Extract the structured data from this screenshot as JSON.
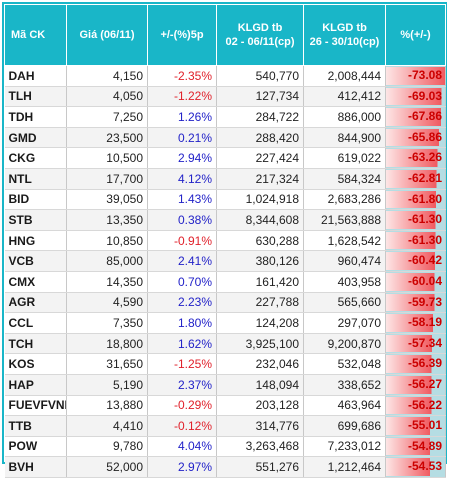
{
  "colors": {
    "header_bg": "#19b6c8",
    "neg": "#e0202a",
    "pos": "#2222c8",
    "bar_red": "#f05a60",
    "bar_fade": "#fde6e6",
    "cell_teal": "#b5dde3",
    "pct_text": "#cc0000"
  },
  "table": {
    "headers": {
      "symbol": "Mã CK",
      "price": "Giá (06/11)",
      "change": "+/-(%)5p",
      "vol_recent_line1": "KLGD tb",
      "vol_recent_line2": "02 - 06/11(cp)",
      "vol_prev_line1": "KLGD tb",
      "vol_prev_line2": "26 - 30/10(cp)",
      "pct": "%(+/-)"
    },
    "rows": [
      {
        "symbol": "DAH",
        "price": "4,150",
        "change": "-2.35%",
        "change_value": -2.35,
        "vol_recent": "540,770",
        "vol_prev": "2,008,444",
        "pct": "-73.08",
        "pct_value": -73.08
      },
      {
        "symbol": "TLH",
        "price": "4,050",
        "change": "-1.22%",
        "change_value": -1.22,
        "vol_recent": "127,734",
        "vol_prev": "412,412",
        "pct": "-69.03",
        "pct_value": -69.03
      },
      {
        "symbol": "TDH",
        "price": "7,250",
        "change": "1.26%",
        "change_value": 1.26,
        "vol_recent": "284,722",
        "vol_prev": "886,000",
        "pct": "-67.86",
        "pct_value": -67.86
      },
      {
        "symbol": "GMD",
        "price": "23,500",
        "change": "0.21%",
        "change_value": 0.21,
        "vol_recent": "288,420",
        "vol_prev": "844,900",
        "pct": "-65.86",
        "pct_value": -65.86
      },
      {
        "symbol": "CKG",
        "price": "10,500",
        "change": "2.94%",
        "change_value": 2.94,
        "vol_recent": "227,424",
        "vol_prev": "619,022",
        "pct": "-63.26",
        "pct_value": -63.26
      },
      {
        "symbol": "NTL",
        "price": "17,700",
        "change": "4.12%",
        "change_value": 4.12,
        "vol_recent": "217,324",
        "vol_prev": "584,324",
        "pct": "-62.81",
        "pct_value": -62.81
      },
      {
        "symbol": "BID",
        "price": "39,050",
        "change": "1.43%",
        "change_value": 1.43,
        "vol_recent": "1,024,918",
        "vol_prev": "2,683,286",
        "pct": "-61.80",
        "pct_value": -61.8
      },
      {
        "symbol": "STB",
        "price": "13,350",
        "change": "0.38%",
        "change_value": 0.38,
        "vol_recent": "8,344,608",
        "vol_prev": "21,563,888",
        "pct": "-61.30",
        "pct_value": -61.3
      },
      {
        "symbol": "HNG",
        "price": "10,850",
        "change": "-0.91%",
        "change_value": -0.91,
        "vol_recent": "630,288",
        "vol_prev": "1,628,542",
        "pct": "-61.30",
        "pct_value": -61.3
      },
      {
        "symbol": "VCB",
        "price": "85,000",
        "change": "2.41%",
        "change_value": 2.41,
        "vol_recent": "380,126",
        "vol_prev": "960,474",
        "pct": "-60.42",
        "pct_value": -60.42
      },
      {
        "symbol": "CMX",
        "price": "14,350",
        "change": "0.70%",
        "change_value": 0.7,
        "vol_recent": "161,420",
        "vol_prev": "403,958",
        "pct": "-60.04",
        "pct_value": -60.04
      },
      {
        "symbol": "AGR",
        "price": "4,590",
        "change": "2.23%",
        "change_value": 2.23,
        "vol_recent": "227,788",
        "vol_prev": "565,660",
        "pct": "-59.73",
        "pct_value": -59.73
      },
      {
        "symbol": "CCL",
        "price": "7,350",
        "change": "1.80%",
        "change_value": 1.8,
        "vol_recent": "124,208",
        "vol_prev": "297,070",
        "pct": "-58.19",
        "pct_value": -58.19
      },
      {
        "symbol": "TCH",
        "price": "18,800",
        "change": "1.62%",
        "change_value": 1.62,
        "vol_recent": "3,925,100",
        "vol_prev": "9,200,870",
        "pct": "-57.34",
        "pct_value": -57.34
      },
      {
        "symbol": "KOS",
        "price": "31,650",
        "change": "-1.25%",
        "change_value": -1.25,
        "vol_recent": "232,046",
        "vol_prev": "532,048",
        "pct": "-56.39",
        "pct_value": -56.39
      },
      {
        "symbol": "HAP",
        "price": "5,190",
        "change": "2.37%",
        "change_value": 2.37,
        "vol_recent": "148,094",
        "vol_prev": "338,652",
        "pct": "-56.27",
        "pct_value": -56.27
      },
      {
        "symbol": "FUEVFVND",
        "price": "13,880",
        "change": "-0.29%",
        "change_value": -0.29,
        "vol_recent": "203,128",
        "vol_prev": "463,964",
        "pct": "-56.22",
        "pct_value": -56.22
      },
      {
        "symbol": "TTB",
        "price": "4,410",
        "change": "-0.12%",
        "change_value": -0.12,
        "vol_recent": "314,776",
        "vol_prev": "699,686",
        "pct": "-55.01",
        "pct_value": -55.01
      },
      {
        "symbol": "POW",
        "price": "9,780",
        "change": "4.04%",
        "change_value": 4.04,
        "vol_recent": "3,263,468",
        "vol_prev": "7,233,012",
        "pct": "-54.89",
        "pct_value": -54.89
      },
      {
        "symbol": "BVH",
        "price": "52,000",
        "change": "2.97%",
        "change_value": 2.97,
        "vol_recent": "551,276",
        "vol_prev": "1,212,464",
        "pct": "-54.53",
        "pct_value": -54.53
      }
    ]
  }
}
